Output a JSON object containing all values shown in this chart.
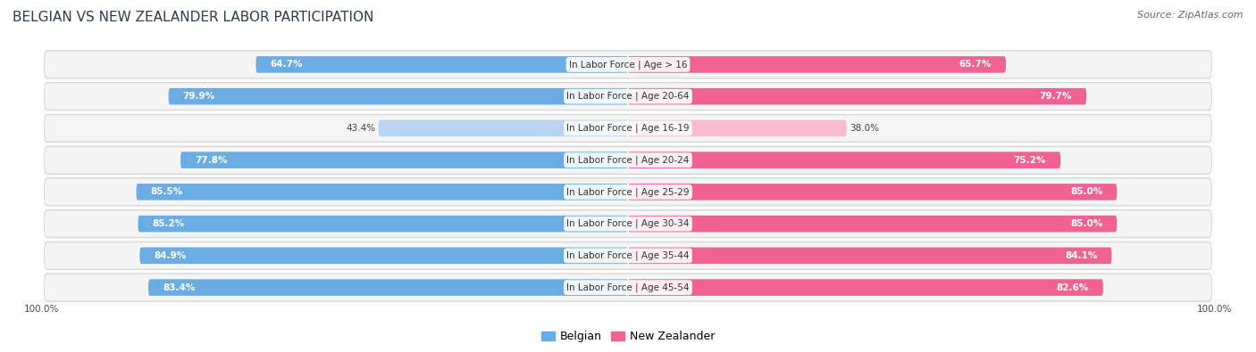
{
  "title": "BELGIAN VS NEW ZEALANDER LABOR PARTICIPATION",
  "source": "Source: ZipAtlas.com",
  "categories": [
    "In Labor Force | Age > 16",
    "In Labor Force | Age 20-64",
    "In Labor Force | Age 16-19",
    "In Labor Force | Age 20-24",
    "In Labor Force | Age 25-29",
    "In Labor Force | Age 30-34",
    "In Labor Force | Age 35-44",
    "In Labor Force | Age 45-54"
  ],
  "belgian_values": [
    64.7,
    79.9,
    43.4,
    77.8,
    85.5,
    85.2,
    84.9,
    83.4
  ],
  "nz_values": [
    65.7,
    79.7,
    38.0,
    75.2,
    85.0,
    85.0,
    84.1,
    82.6
  ],
  "belgian_color": "#6aade4",
  "belgian_color_light": "#b8d4f0",
  "nz_color": "#f06292",
  "nz_color_light": "#f8bbd0",
  "row_bg_color": "#e8e8e8",
  "row_inner_color": "#f5f5f5",
  "max_value": 100.0,
  "background_color": "#ffffff",
  "title_fontsize": 11,
  "label_fontsize": 7.5,
  "value_fontsize": 7.5,
  "legend_fontsize": 9,
  "source_fontsize": 8
}
